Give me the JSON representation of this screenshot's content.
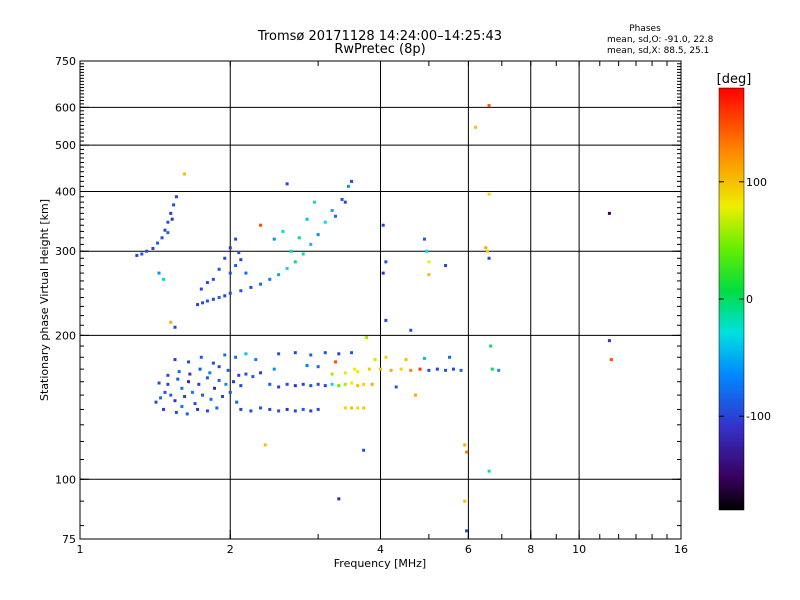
{
  "header": {
    "title_line1": "Tromsø 20171128 14:24:00–14:25:43",
    "title_line2": "RwPretec (8p)"
  },
  "stats": {
    "heading": "Phases",
    "line1": "mean, sd,O: -91.0, 22.8",
    "line2": "mean, sd,X:  88.5, 25.1"
  },
  "colorbar": {
    "unit_label": "[deg]",
    "range": [
      -180,
      180
    ],
    "ticks": [
      {
        "value": 100,
        "label": "100"
      },
      {
        "value": 0,
        "label": "0"
      },
      {
        "value": -100,
        "label": "-100"
      }
    ]
  },
  "chart_data": {
    "type": "scatter",
    "title": "Tromsø 20171128 14:24:00–14:25:43",
    "subtitle": "RwPretec (8p)",
    "xlabel": "Frequency [MHz]",
    "ylabel": "Stationary phase Virtual Height [km]",
    "x_scale": "log",
    "y_scale": "log",
    "xlim": [
      1,
      16
    ],
    "ylim": [
      75,
      750
    ],
    "x_ticks": [
      {
        "value": 1,
        "label": "1"
      },
      {
        "value": 2,
        "label": "2"
      },
      {
        "value": 4,
        "label": "4"
      },
      {
        "value": 6,
        "label": "6"
      },
      {
        "value": 8,
        "label": "8"
      },
      {
        "value": 10,
        "label": "10"
      },
      {
        "value": 16,
        "label": "16"
      }
    ],
    "x_gridlines": [
      2,
      4,
      6,
      8,
      10
    ],
    "y_ticks": [
      {
        "value": 75,
        "label": "75"
      },
      {
        "value": 100,
        "label": "100"
      },
      {
        "value": 200,
        "label": "200"
      },
      {
        "value": 300,
        "label": "300"
      },
      {
        "value": 400,
        "label": "400"
      },
      {
        "value": 500,
        "label": "500"
      },
      {
        "value": 600,
        "label": "600"
      },
      {
        "value": 750,
        "label": "750"
      }
    ],
    "y_gridlines": [
      100,
      200,
      300,
      400,
      500,
      600
    ],
    "grid": true,
    "color_variable": "phase [deg]",
    "points": [
      {
        "x": 1.45,
        "y": 148,
        "c": -80
      },
      {
        "x": 1.48,
        "y": 152,
        "c": -95
      },
      {
        "x": 1.5,
        "y": 158,
        "c": -100
      },
      {
        "x": 1.52,
        "y": 150,
        "c": -85
      },
      {
        "x": 1.55,
        "y": 146,
        "c": -110
      },
      {
        "x": 1.57,
        "y": 162,
        "c": -90
      },
      {
        "x": 1.6,
        "y": 155,
        "c": -75
      },
      {
        "x": 1.62,
        "y": 149,
        "c": -100
      },
      {
        "x": 1.65,
        "y": 160,
        "c": -120
      },
      {
        "x": 1.68,
        "y": 152,
        "c": -70
      },
      {
        "x": 1.7,
        "y": 144,
        "c": -95
      },
      {
        "x": 1.73,
        "y": 158,
        "c": -105
      },
      {
        "x": 1.76,
        "y": 150,
        "c": -88
      },
      {
        "x": 1.8,
        "y": 163,
        "c": -92
      },
      {
        "x": 1.83,
        "y": 147,
        "c": -78
      },
      {
        "x": 1.86,
        "y": 155,
        "c": -115
      },
      {
        "x": 1.9,
        "y": 161,
        "c": -85
      },
      {
        "x": 1.93,
        "y": 149,
        "c": -100
      },
      {
        "x": 1.96,
        "y": 158,
        "c": -60
      },
      {
        "x": 2.0,
        "y": 152,
        "c": -90
      },
      {
        "x": 2.03,
        "y": 160,
        "c": -105
      },
      {
        "x": 2.06,
        "y": 145,
        "c": -82
      },
      {
        "x": 2.1,
        "y": 157,
        "c": -98
      },
      {
        "x": 1.5,
        "y": 165,
        "c": -95
      },
      {
        "x": 1.58,
        "y": 168,
        "c": -80
      },
      {
        "x": 1.66,
        "y": 166,
        "c": -110
      },
      {
        "x": 1.74,
        "y": 170,
        "c": -90
      },
      {
        "x": 1.82,
        "y": 167,
        "c": -70
      },
      {
        "x": 1.9,
        "y": 172,
        "c": -100
      },
      {
        "x": 1.98,
        "y": 169,
        "c": -85
      },
      {
        "x": 1.55,
        "y": 178,
        "c": -105
      },
      {
        "x": 1.65,
        "y": 176,
        "c": -95
      },
      {
        "x": 1.75,
        "y": 180,
        "c": -88
      },
      {
        "x": 1.85,
        "y": 175,
        "c": -100
      },
      {
        "x": 1.95,
        "y": 182,
        "c": -75
      },
      {
        "x": 1.47,
        "y": 140,
        "c": -100
      },
      {
        "x": 1.56,
        "y": 138,
        "c": -90
      },
      {
        "x": 1.64,
        "y": 137,
        "c": -85
      },
      {
        "x": 1.72,
        "y": 140,
        "c": -110
      },
      {
        "x": 1.8,
        "y": 139,
        "c": -95
      },
      {
        "x": 1.88,
        "y": 141,
        "c": -80
      },
      {
        "x": 1.42,
        "y": 145,
        "c": -100
      },
      {
        "x": 1.44,
        "y": 159,
        "c": -95
      },
      {
        "x": 1.6,
        "y": 142,
        "c": -70
      },
      {
        "x": 2.08,
        "y": 165,
        "c": -100
      },
      {
        "x": 2.15,
        "y": 166,
        "c": -95
      },
      {
        "x": 2.22,
        "y": 164,
        "c": -88
      },
      {
        "x": 2.3,
        "y": 167,
        "c": -105
      },
      {
        "x": 2.1,
        "y": 140,
        "c": -100
      },
      {
        "x": 2.2,
        "y": 139,
        "c": -95
      },
      {
        "x": 2.3,
        "y": 141,
        "c": -90
      },
      {
        "x": 2.05,
        "y": 180,
        "c": -80
      },
      {
        "x": 2.15,
        "y": 183,
        "c": -40
      },
      {
        "x": 2.25,
        "y": 178,
        "c": -70
      },
      {
        "x": 2.4,
        "y": 158,
        "c": -85
      },
      {
        "x": 2.5,
        "y": 156,
        "c": -100
      },
      {
        "x": 2.6,
        "y": 158,
        "c": -95
      },
      {
        "x": 2.7,
        "y": 157,
        "c": -110
      },
      {
        "x": 2.8,
        "y": 158,
        "c": -100
      },
      {
        "x": 2.9,
        "y": 157,
        "c": -90
      },
      {
        "x": 3.0,
        "y": 158,
        "c": -95
      },
      {
        "x": 3.1,
        "y": 157,
        "c": -100
      },
      {
        "x": 3.2,
        "y": 158,
        "c": -30
      },
      {
        "x": 3.3,
        "y": 157,
        "c": 40
      },
      {
        "x": 3.4,
        "y": 158,
        "c": 60
      },
      {
        "x": 3.5,
        "y": 159,
        "c": 80
      },
      {
        "x": 3.6,
        "y": 157,
        "c": 100
      },
      {
        "x": 3.7,
        "y": 158,
        "c": 90
      },
      {
        "x": 3.85,
        "y": 158,
        "c": 110
      },
      {
        "x": 2.4,
        "y": 140,
        "c": -100
      },
      {
        "x": 2.5,
        "y": 139,
        "c": -95
      },
      {
        "x": 2.6,
        "y": 140,
        "c": -110
      },
      {
        "x": 2.7,
        "y": 139,
        "c": -100
      },
      {
        "x": 2.8,
        "y": 140,
        "c": -90
      },
      {
        "x": 2.9,
        "y": 139,
        "c": -100
      },
      {
        "x": 3.0,
        "y": 140,
        "c": -95
      },
      {
        "x": 3.4,
        "y": 141,
        "c": 90
      },
      {
        "x": 3.5,
        "y": 141,
        "c": 100
      },
      {
        "x": 3.6,
        "y": 141,
        "c": 85
      },
      {
        "x": 3.7,
        "y": 141,
        "c": 95
      },
      {
        "x": 2.5,
        "y": 183,
        "c": -90
      },
      {
        "x": 2.7,
        "y": 184,
        "c": -100
      },
      {
        "x": 2.9,
        "y": 182,
        "c": -85
      },
      {
        "x": 3.1,
        "y": 184,
        "c": -95
      },
      {
        "x": 3.3,
        "y": 183,
        "c": -100
      },
      {
        "x": 3.5,
        "y": 184,
        "c": -90
      },
      {
        "x": 3.2,
        "y": 166,
        "c": 60
      },
      {
        "x": 3.4,
        "y": 167,
        "c": 75
      },
      {
        "x": 3.6,
        "y": 168,
        "c": 80
      },
      {
        "x": 3.8,
        "y": 170,
        "c": 95
      },
      {
        "x": 3.9,
        "y": 178,
        "c": 70
      },
      {
        "x": 3.0,
        "y": 172,
        "c": -80
      },
      {
        "x": 2.45,
        "y": 170,
        "c": -60
      },
      {
        "x": 2.85,
        "y": 173,
        "c": -70
      },
      {
        "x": 3.25,
        "y": 176,
        "c": 150
      },
      {
        "x": 4.0,
        "y": 170,
        "c": 100
      },
      {
        "x": 4.2,
        "y": 169,
        "c": 110
      },
      {
        "x": 4.4,
        "y": 170,
        "c": 90
      },
      {
        "x": 4.6,
        "y": 169,
        "c": 130
      },
      {
        "x": 4.8,
        "y": 170,
        "c": 160
      },
      {
        "x": 5.0,
        "y": 169,
        "c": -95
      },
      {
        "x": 5.2,
        "y": 170,
        "c": -100
      },
      {
        "x": 5.4,
        "y": 169,
        "c": -90
      },
      {
        "x": 5.6,
        "y": 170,
        "c": -100
      },
      {
        "x": 5.8,
        "y": 169,
        "c": -85
      },
      {
        "x": 4.1,
        "y": 180,
        "c": 90
      },
      {
        "x": 4.5,
        "y": 178,
        "c": 100
      },
      {
        "x": 4.9,
        "y": 179,
        "c": -40
      },
      {
        "x": 5.5,
        "y": 180,
        "c": -80
      },
      {
        "x": 6.7,
        "y": 170,
        "c": 0
      },
      {
        "x": 6.9,
        "y": 169,
        "c": -60
      },
      {
        "x": 4.3,
        "y": 156,
        "c": -90
      },
      {
        "x": 4.7,
        "y": 150,
        "c": 110
      },
      {
        "x": 1.3,
        "y": 294,
        "c": -100
      },
      {
        "x": 1.33,
        "y": 296,
        "c": -90
      },
      {
        "x": 1.36,
        "y": 300,
        "c": -95
      },
      {
        "x": 1.4,
        "y": 304,
        "c": -100
      },
      {
        "x": 1.43,
        "y": 312,
        "c": -85
      },
      {
        "x": 1.46,
        "y": 320,
        "c": -95
      },
      {
        "x": 1.48,
        "y": 332,
        "c": -100
      },
      {
        "x": 1.5,
        "y": 345,
        "c": -90
      },
      {
        "x": 1.52,
        "y": 360,
        "c": -105
      },
      {
        "x": 1.54,
        "y": 375,
        "c": -95
      },
      {
        "x": 1.56,
        "y": 390,
        "c": -100
      },
      {
        "x": 1.5,
        "y": 328,
        "c": -80
      },
      {
        "x": 1.53,
        "y": 350,
        "c": -110
      },
      {
        "x": 1.44,
        "y": 270,
        "c": -60
      },
      {
        "x": 1.47,
        "y": 262,
        "c": -30
      },
      {
        "x": 1.55,
        "y": 208,
        "c": -100
      },
      {
        "x": 1.62,
        "y": 435,
        "c": 100
      },
      {
        "x": 1.72,
        "y": 232,
        "c": -100
      },
      {
        "x": 1.76,
        "y": 234,
        "c": -95
      },
      {
        "x": 1.8,
        "y": 236,
        "c": -90
      },
      {
        "x": 1.85,
        "y": 238,
        "c": -100
      },
      {
        "x": 1.9,
        "y": 240,
        "c": -85
      },
      {
        "x": 1.95,
        "y": 242,
        "c": -100
      },
      {
        "x": 2.0,
        "y": 245,
        "c": -95
      },
      {
        "x": 2.1,
        "y": 248,
        "c": -90
      },
      {
        "x": 2.2,
        "y": 252,
        "c": -100
      },
      {
        "x": 2.3,
        "y": 256,
        "c": -80
      },
      {
        "x": 2.4,
        "y": 262,
        "c": -70
      },
      {
        "x": 2.5,
        "y": 268,
        "c": -50
      },
      {
        "x": 2.6,
        "y": 276,
        "c": -30
      },
      {
        "x": 2.7,
        "y": 285,
        "c": -10
      },
      {
        "x": 2.8,
        "y": 296,
        "c": -20
      },
      {
        "x": 2.9,
        "y": 310,
        "c": -40
      },
      {
        "x": 3.0,
        "y": 325,
        "c": -60
      },
      {
        "x": 3.1,
        "y": 345,
        "c": -30
      },
      {
        "x": 3.2,
        "y": 365,
        "c": -50
      },
      {
        "x": 1.85,
        "y": 262,
        "c": -95
      },
      {
        "x": 1.9,
        "y": 275,
        "c": -90
      },
      {
        "x": 1.95,
        "y": 290,
        "c": -100
      },
      {
        "x": 2.0,
        "y": 305,
        "c": -105
      },
      {
        "x": 2.05,
        "y": 318,
        "c": -95
      },
      {
        "x": 2.0,
        "y": 270,
        "c": -90
      },
      {
        "x": 2.05,
        "y": 280,
        "c": -85
      },
      {
        "x": 2.1,
        "y": 288,
        "c": -100
      },
      {
        "x": 2.08,
        "y": 298,
        "c": -95
      },
      {
        "x": 2.15,
        "y": 270,
        "c": -80
      },
      {
        "x": 1.8,
        "y": 258,
        "c": -95
      },
      {
        "x": 1.75,
        "y": 250,
        "c": -100
      },
      {
        "x": 2.3,
        "y": 340,
        "c": 150
      },
      {
        "x": 2.45,
        "y": 318,
        "c": -60
      },
      {
        "x": 2.55,
        "y": 330,
        "c": -30
      },
      {
        "x": 2.65,
        "y": 300,
        "c": -20
      },
      {
        "x": 2.75,
        "y": 320,
        "c": -10
      },
      {
        "x": 2.85,
        "y": 350,
        "c": -40
      },
      {
        "x": 2.95,
        "y": 380,
        "c": -30
      },
      {
        "x": 2.6,
        "y": 415,
        "c": -100
      },
      {
        "x": 3.35,
        "y": 385,
        "c": -90
      },
      {
        "x": 3.4,
        "y": 380,
        "c": -100
      },
      {
        "x": 3.5,
        "y": 420,
        "c": -95
      },
      {
        "x": 3.25,
        "y": 355,
        "c": -80
      },
      {
        "x": 3.45,
        "y": 410,
        "c": -60
      },
      {
        "x": 4.05,
        "y": 340,
        "c": -100
      },
      {
        "x": 4.1,
        "y": 285,
        "c": -90
      },
      {
        "x": 4.05,
        "y": 270,
        "c": -110
      },
      {
        "x": 4.1,
        "y": 215,
        "c": -100
      },
      {
        "x": 4.9,
        "y": 318,
        "c": -90
      },
      {
        "x": 4.95,
        "y": 300,
        "c": -30
      },
      {
        "x": 5.0,
        "y": 285,
        "c": 80
      },
      {
        "x": 5.0,
        "y": 268,
        "c": 100
      },
      {
        "x": 5.4,
        "y": 280,
        "c": -100
      },
      {
        "x": 4.6,
        "y": 205,
        "c": -95
      },
      {
        "x": 3.75,
        "y": 198,
        "c": 60
      },
      {
        "x": 3.55,
        "y": 170,
        "c": 80
      },
      {
        "x": 6.2,
        "y": 545,
        "c": 100
      },
      {
        "x": 6.6,
        "y": 605,
        "c": 150
      },
      {
        "x": 6.6,
        "y": 395,
        "c": 90
      },
      {
        "x": 6.5,
        "y": 305,
        "c": 110
      },
      {
        "x": 6.55,
        "y": 300,
        "c": 95
      },
      {
        "x": 6.6,
        "y": 290,
        "c": -100
      },
      {
        "x": 6.65,
        "y": 190,
        "c": 0
      },
      {
        "x": 6.6,
        "y": 104,
        "c": -20
      },
      {
        "x": 5.9,
        "y": 90,
        "c": 100
      },
      {
        "x": 5.95,
        "y": 78,
        "c": -100
      },
      {
        "x": 5.9,
        "y": 118,
        "c": 110
      },
      {
        "x": 5.95,
        "y": 114,
        "c": 130
      },
      {
        "x": 11.5,
        "y": 360,
        "c": -150
      },
      {
        "x": 11.5,
        "y": 195,
        "c": -110
      },
      {
        "x": 11.6,
        "y": 178,
        "c": 150
      },
      {
        "x": 3.3,
        "y": 91,
        "c": -120
      },
      {
        "x": 3.7,
        "y": 115,
        "c": -90
      },
      {
        "x": 2.35,
        "y": 118,
        "c": 100
      },
      {
        "x": 1.52,
        "y": 213,
        "c": 110
      }
    ]
  }
}
